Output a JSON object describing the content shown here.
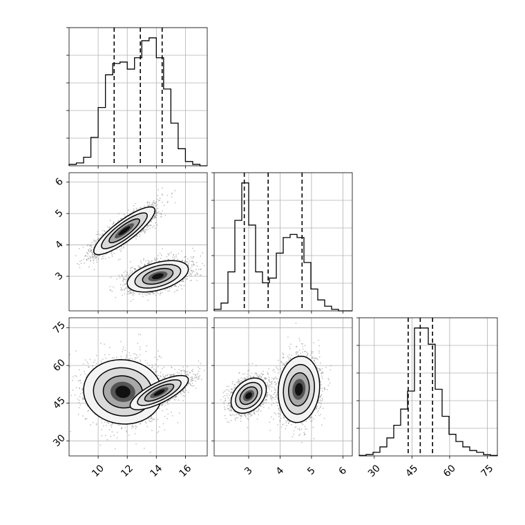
{
  "chart_data": {
    "type": "corner",
    "grid": true,
    "variables": [
      {
        "range": [
          8,
          17.5
        ],
        "ticks": [
          10,
          12,
          14,
          16
        ],
        "tick_labels": [
          "10",
          "12",
          "14",
          "16"
        ]
      },
      {
        "range": [
          1.9,
          6.3
        ],
        "ticks": [
          3,
          4,
          5,
          6
        ],
        "tick_labels": [
          "3",
          "4",
          "5",
          "6"
        ]
      },
      {
        "range": [
          24,
          79
        ],
        "ticks": [
          30,
          45,
          60,
          75
        ],
        "tick_labels": [
          "30",
          "45",
          "60",
          "75"
        ]
      }
    ],
    "histograms": [
      {
        "variable": 0,
        "edges": [
          8,
          8.5,
          9,
          9.5,
          10,
          10.5,
          11,
          11.5,
          12,
          12.5,
          13,
          13.5,
          14,
          14.5,
          15,
          15.5,
          16,
          16.5,
          17,
          17.5
        ],
        "counts": [
          1,
          2,
          6,
          20,
          41,
          64,
          72,
          73,
          68,
          76,
          88,
          90,
          76,
          54,
          30,
          12,
          3,
          1,
          0
        ],
        "quantiles": [
          11.1,
          12.9,
          14.4
        ]
      },
      {
        "variable": 1,
        "edges": [
          1.9,
          2.12,
          2.34,
          2.56,
          2.78,
          3.0,
          3.22,
          3.44,
          3.66,
          3.88,
          4.1,
          4.32,
          4.54,
          4.76,
          4.98,
          5.2,
          5.42,
          5.64,
          5.86,
          6.08,
          6.3
        ],
        "counts": [
          1,
          5,
          25,
          58,
          82,
          55,
          25,
          18,
          21,
          37,
          47,
          49,
          47,
          31,
          14,
          7,
          3,
          1,
          0,
          0
        ],
        "quantiles": [
          2.86,
          3.62,
          4.7
        ]
      },
      {
        "variable": 2,
        "edges": [
          24,
          26.75,
          29.5,
          32.25,
          35,
          37.75,
          40.5,
          43.25,
          46,
          48.75,
          51.5,
          54.25,
          57,
          59.75,
          62.5,
          65.25,
          68,
          70.75,
          73.5,
          76.25,
          79
        ],
        "counts": [
          0.3,
          0.8,
          2,
          5,
          10,
          17,
          26,
          36,
          71,
          71,
          62,
          37,
          22,
          12,
          8,
          5,
          3,
          2,
          0.7,
          0.3
        ],
        "quantiles": [
          43.5,
          48.3,
          53.2
        ]
      }
    ],
    "density_panels": [
      {
        "x_var": 0,
        "y_var": 1,
        "components": [
          {
            "mean": [
              11.8,
              4.45
            ],
            "sd": [
              1.05,
              0.38
            ],
            "corr": 0.85,
            "n": 2200
          },
          {
            "mean": [
              14.1,
              3.0
            ],
            "sd": [
              1.05,
              0.25
            ],
            "corr": 0.45,
            "n": 2200
          }
        ],
        "contour_levels": [
          0.393,
          0.675,
          0.865
        ]
      },
      {
        "x_var": 0,
        "y_var": 2,
        "components": [
          {
            "mean": [
              11.7,
              49.5
            ],
            "sd": [
              1.35,
              6.4
            ],
            "corr": -0.05,
            "n": 2200
          },
          {
            "mean": [
              14.2,
              49.2
            ],
            "sd": [
              1.0,
              3.4
            ],
            "corr": 0.75,
            "n": 2200
          }
        ],
        "contour_levels": [
          0.393,
          0.675,
          0.865
        ]
      },
      {
        "x_var": 1,
        "y_var": 2,
        "components": [
          {
            "mean": [
              3.0,
              48.0
            ],
            "sd": [
              0.28,
              3.5
            ],
            "corr": 0.35,
            "n": 2200
          },
          {
            "mean": [
              4.6,
              50.5
            ],
            "sd": [
              0.33,
              6.6
            ],
            "corr": 0.1,
            "n": 2200
          }
        ],
        "contour_levels": [
          0.393,
          0.675,
          0.865
        ]
      }
    ]
  }
}
